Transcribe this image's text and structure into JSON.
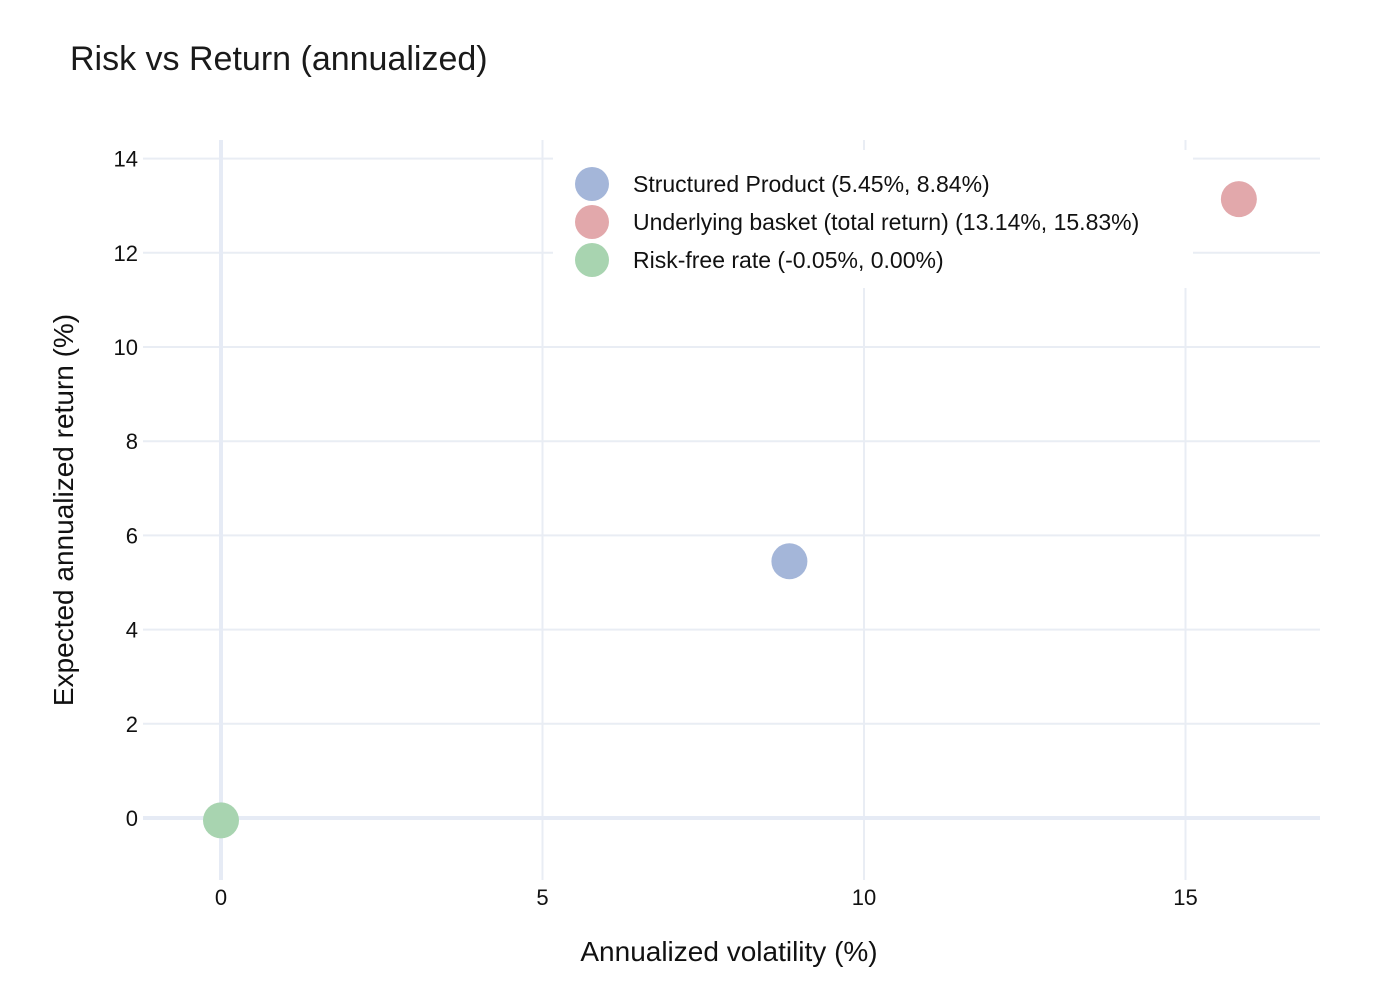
{
  "chart_data": {
    "type": "scatter",
    "title": "Risk vs Return (annualized)",
    "xlabel": "Annualized volatility (%)",
    "ylabel": "Expected annualized return (%)",
    "xlim": [
      -1.2,
      17.0
    ],
    "ylim": [
      -1.3,
      14.4
    ],
    "xticks": [
      0,
      5,
      10,
      15
    ],
    "yticks": [
      0,
      2,
      4,
      6,
      8,
      10,
      12,
      14
    ],
    "grid": true,
    "legend_position": "top-right",
    "series": [
      {
        "name": "Structured Product (5.45%, 8.84%)",
        "color": "#a4b6d9",
        "points": [
          {
            "x": 8.84,
            "y": 5.45
          }
        ]
      },
      {
        "name": "Underlying basket (total return) (13.14%, 15.83%)",
        "color": "#e2a8ab",
        "points": [
          {
            "x": 15.83,
            "y": 13.14
          }
        ]
      },
      {
        "name": "Risk-free rate (-0.05%, 0.00%)",
        "color": "#a8d4b0",
        "points": [
          {
            "x": 0.0,
            "y": -0.05
          }
        ]
      }
    ]
  }
}
